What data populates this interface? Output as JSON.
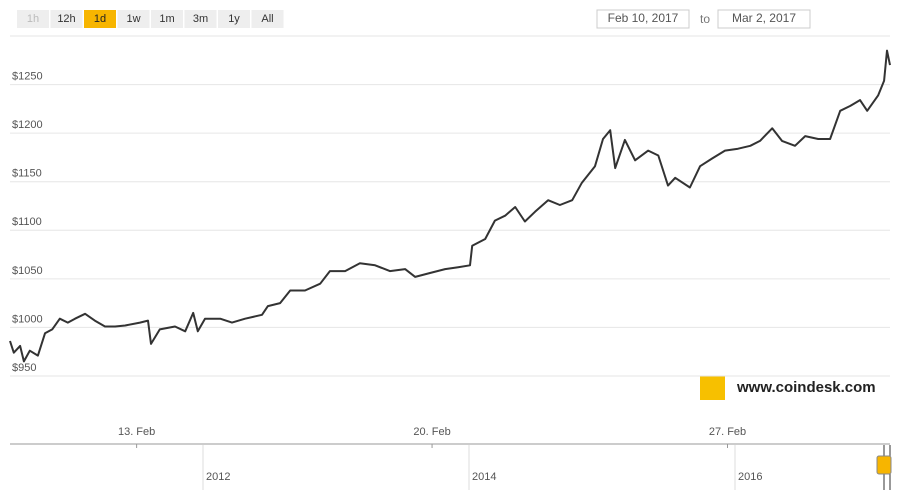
{
  "chart_data": {
    "type": "line",
    "range_buttons": [
      "1h",
      "12h",
      "1d",
      "1w",
      "1m",
      "3m",
      "1y",
      "All"
    ],
    "selected_range": "1d",
    "disabled_ranges": [
      "1h"
    ],
    "date_from": "Feb 10, 2017",
    "date_separator": "to",
    "date_to": "Mar 2, 2017",
    "watermark": "www.coindesk.com",
    "navigator_labels": [
      "2012",
      "2014",
      "2016"
    ],
    "x": [
      10,
      10.09,
      10.24,
      10.33,
      10.47,
      10.66,
      10.83,
      11.0,
      11.18,
      11.37,
      11.54,
      11.78,
      12.01,
      12.25,
      12.49,
      12.73,
      13.08,
      13.27,
      13.34,
      13.55,
      13.91,
      14.15,
      14.34,
      14.45,
      14.62,
      14.98,
      15.26,
      15.57,
      15.97,
      16.11,
      16.4,
      16.64,
      16.99,
      17.35,
      17.58,
      17.94,
      18.29,
      18.65,
      19.0,
      19.36,
      19.6,
      19.95,
      20.31,
      20.62,
      20.9,
      20.95,
      21.26,
      21.49,
      21.73,
      21.97,
      22.2,
      22.44,
      22.75,
      23.03,
      23.32,
      23.55,
      23.86,
      24.05,
      24.22,
      24.34,
      24.57,
      24.81,
      25.12,
      25.36,
      25.59,
      25.76,
      26.11,
      26.35,
      26.64,
      26.94,
      27.25,
      27.54,
      27.77,
      28.06,
      28.29,
      28.6,
      28.84,
      29.15,
      29.43,
      29.67,
      29.91,
      30.14,
      30.31,
      30.57,
      30.71,
      30.78,
      30.85
    ],
    "series": [
      {
        "color": "#333333",
        "values": [
          986,
          974,
          981,
          965,
          976,
          971,
          994,
          998,
          1009,
          1005,
          1009,
          1014,
          1007,
          1001,
          1001,
          1002,
          1005,
          1007,
          983,
          998,
          1001,
          996,
          1015,
          996,
          1009,
          1009,
          1005,
          1009,
          1013,
          1022,
          1025,
          1038,
          1038,
          1045,
          1058,
          1058,
          1066,
          1064,
          1058,
          1060,
          1052,
          1056,
          1060,
          1062,
          1064,
          1084,
          1091,
          1110,
          1115,
          1124,
          1109,
          1119,
          1131,
          1126,
          1131,
          1149,
          1166,
          1194,
          1203,
          1164,
          1193,
          1172,
          1182,
          1177,
          1146,
          1154,
          1144,
          1166,
          1174,
          1182,
          1184,
          1187,
          1192,
          1205,
          1192,
          1187,
          1197,
          1194,
          1194,
          1223,
          1228,
          1234,
          1223,
          1239,
          1254,
          1285,
          1270
        ]
      }
    ],
    "xlim": [
      10,
      30.85
    ],
    "xticks": [
      {
        "value": 13,
        "label": "13. Feb"
      },
      {
        "value": 20,
        "label": "20. Feb"
      },
      {
        "value": 27,
        "label": "27. Feb"
      }
    ],
    "ylim": [
      915,
      1300
    ],
    "yticks": [
      {
        "value": 950,
        "label": "$950"
      },
      {
        "value": 1000,
        "label": "$1000"
      },
      {
        "value": 1050,
        "label": "$1050"
      },
      {
        "value": 1100,
        "label": "$1100"
      },
      {
        "value": 1150,
        "label": "$1150"
      },
      {
        "value": 1200,
        "label": "$1200"
      },
      {
        "value": 1250,
        "label": "$1250"
      }
    ],
    "grid": true
  }
}
